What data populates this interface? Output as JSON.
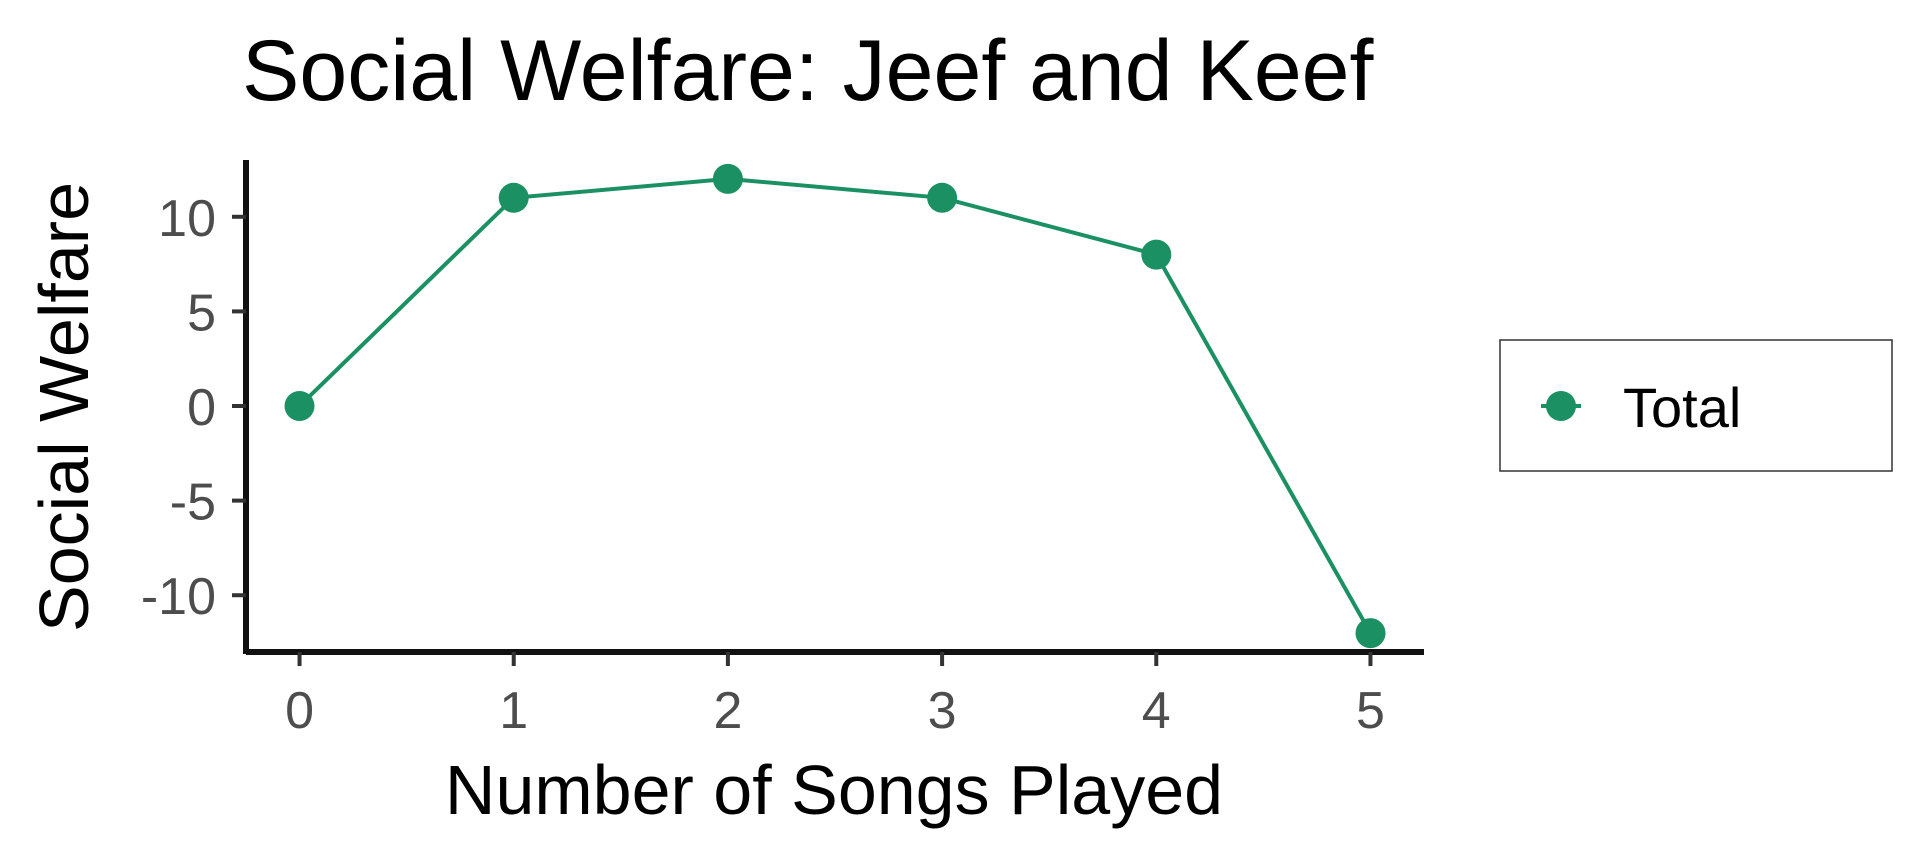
{
  "chart_data": {
    "type": "line",
    "title": "Social Welfare: Jeef and Keef",
    "xlabel": "Number of Songs Played",
    "ylabel": "Social Welfare",
    "xlim": [
      -0.25,
      5.25
    ],
    "ylim": [
      -13,
      13
    ],
    "x_ticks": [
      0,
      1,
      2,
      3,
      4,
      5
    ],
    "y_ticks": [
      -10,
      -5,
      0,
      5,
      10
    ],
    "grid": false,
    "legend_position": "right",
    "series": [
      {
        "name": "Total",
        "color": "#1b9163",
        "x": [
          0,
          1,
          2,
          3,
          4,
          5
        ],
        "y": [
          0,
          11,
          12,
          11,
          8,
          -12
        ]
      }
    ]
  }
}
